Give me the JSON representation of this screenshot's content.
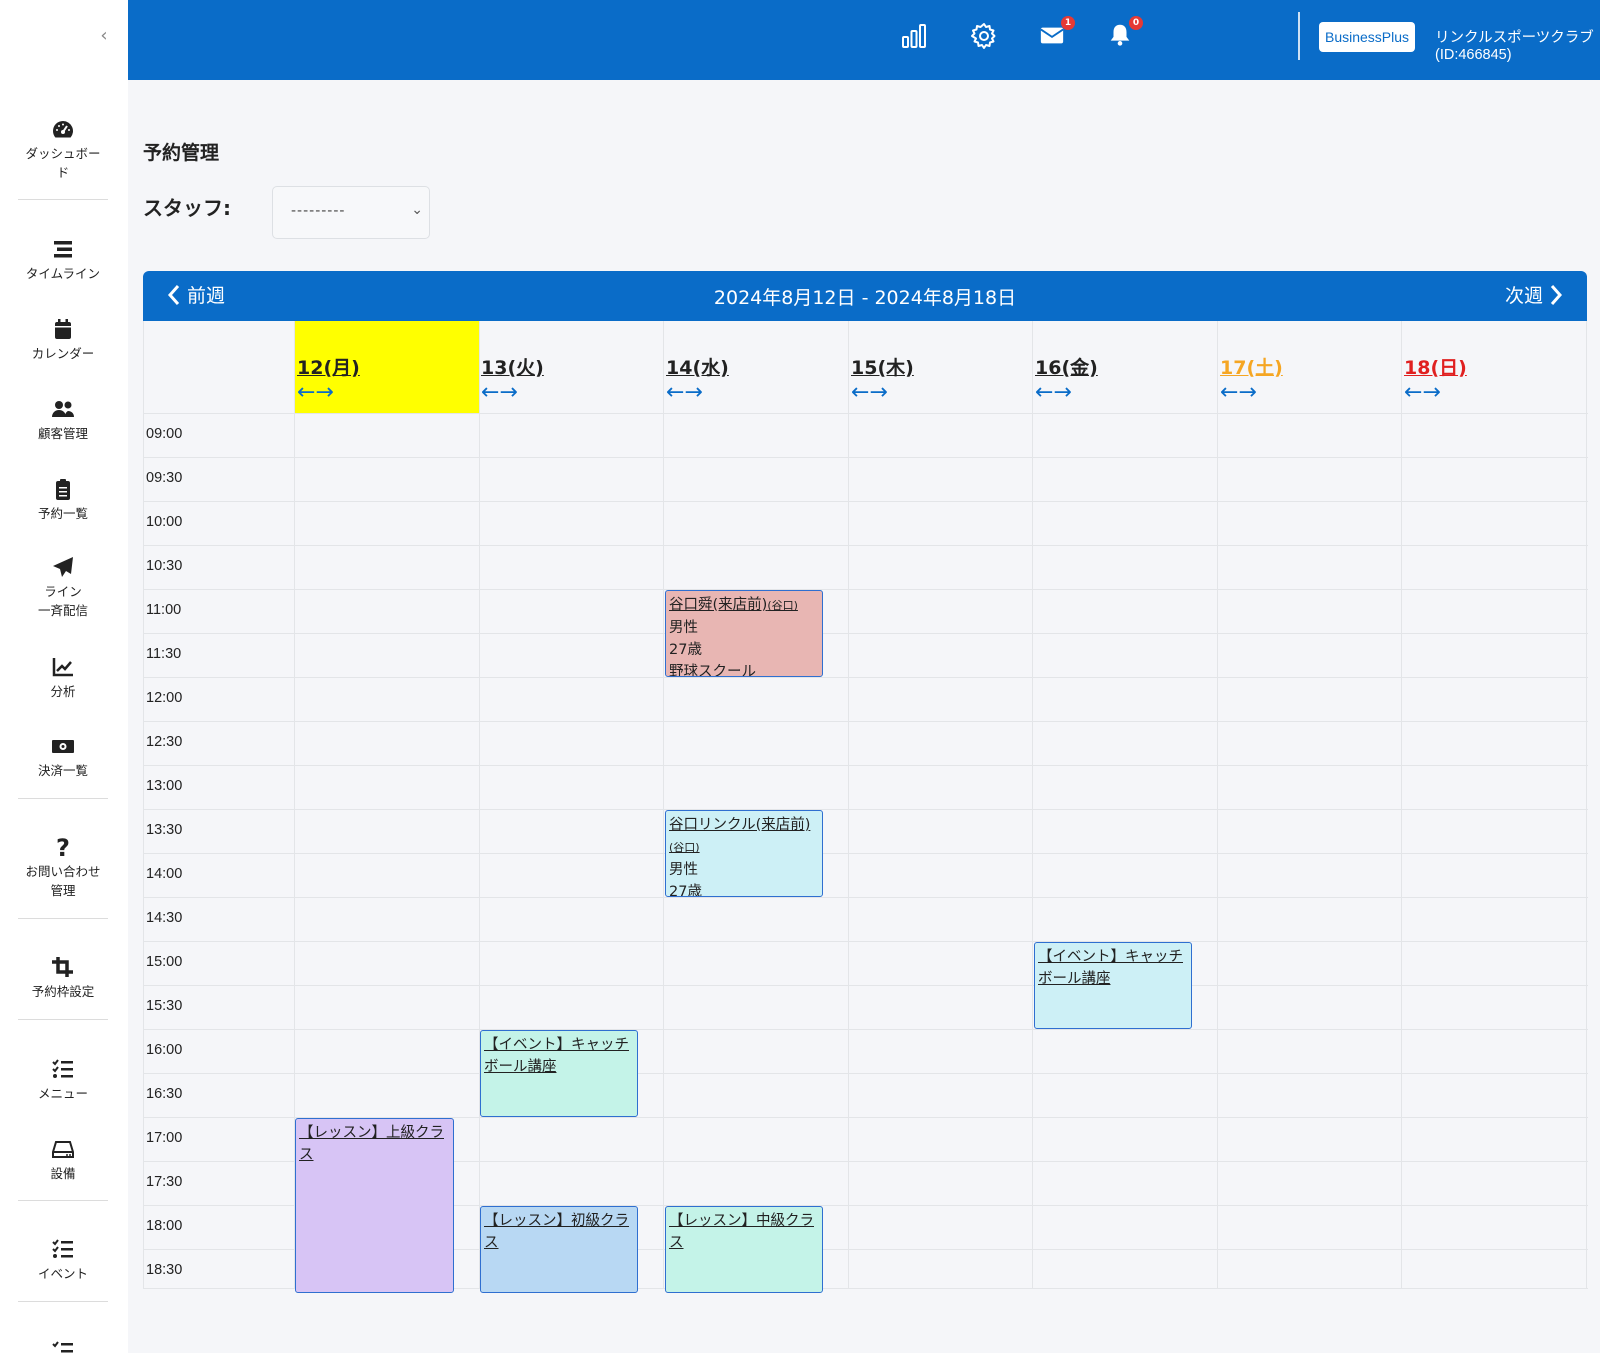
{
  "sidebar": {
    "items": [
      {
        "label": "ダッシュボー\nド",
        "icon": "dashboard-gauge-icon"
      },
      {
        "label": "タイムライン",
        "icon": "timeline-icon"
      },
      {
        "label": "カレンダー",
        "icon": "calendar-icon"
      },
      {
        "label": "顧客管理",
        "icon": "users-icon"
      },
      {
        "label": "予約一覧",
        "icon": "clipboard-icon"
      },
      {
        "label": "ライン\n一斉配信",
        "icon": "paper-plane-icon"
      },
      {
        "label": "分析",
        "icon": "chart-line-icon"
      },
      {
        "label": "決済一覧",
        "icon": "money-icon"
      },
      {
        "label": "お問い合わせ\n管理",
        "icon": "question-icon"
      },
      {
        "label": "予約枠設定",
        "icon": "crop-icon"
      },
      {
        "label": "メニュー",
        "icon": "list-check-icon"
      },
      {
        "label": "設備",
        "icon": "hdd-icon"
      },
      {
        "label": "イベント",
        "icon": "list-check-icon"
      }
    ]
  },
  "header": {
    "mail_count": "1",
    "notification_count": "0",
    "plan": "BusinessPlus",
    "account": "リンクルスポーツクラブ (ID:466845)"
  },
  "page": {
    "title": "予約管理",
    "staff_label": "スタッフ:",
    "staff_value": "---------"
  },
  "calendar": {
    "prev_label": "前週",
    "next_label": "次週",
    "range": "2024年8月12日 - 2024年8月18日",
    "arrows": "←→",
    "days": [
      {
        "label": "12(月)",
        "color": "#222222",
        "highlight": "#ffff00"
      },
      {
        "label": "13(火)",
        "color": "#222222"
      },
      {
        "label": "14(水)",
        "color": "#222222"
      },
      {
        "label": "15(木)",
        "color": "#222222"
      },
      {
        "label": "16(金)",
        "color": "#222222"
      },
      {
        "label": "17(土)",
        "color": "#f5a623"
      },
      {
        "label": "18(日)",
        "color": "#e02020"
      }
    ],
    "times": [
      "09:00",
      "09:30",
      "10:00",
      "10:30",
      "11:00",
      "11:30",
      "12:00",
      "12:30",
      "13:00",
      "13:30",
      "14:00",
      "14:30",
      "15:00",
      "15:30",
      "16:00",
      "16:30",
      "17:00",
      "17:30",
      "18:00",
      "18:30"
    ],
    "events": [
      {
        "title": "谷口舜(来店前)",
        "sub": "(谷口)",
        "lines": [
          "男性",
          "27歳",
          "野球スクール"
        ],
        "color": "#e8b6b3"
      },
      {
        "title": "谷口リンクル(来店前)",
        "sub": "(谷口)",
        "lines": [
          "男性",
          "27歳"
        ],
        "color": "#cdf0f6"
      },
      {
        "title": "【イベント】キャッチボール講座",
        "sub": "",
        "lines": [],
        "color": "#cdf0f6"
      },
      {
        "title": "【イベント】キャッチボール講座",
        "sub": "",
        "lines": [],
        "color": "#c4f3e8"
      },
      {
        "title": "【レッスン】上級クラス",
        "sub": "",
        "lines": [],
        "color": "#d7c4f5"
      },
      {
        "title": "【レッスン】初級クラス",
        "sub": "",
        "lines": [],
        "color": "#b8d8f3"
      },
      {
        "title": "【レッスン】中級クラス",
        "sub": "",
        "lines": [],
        "color": "#c4f3e8"
      }
    ]
  }
}
